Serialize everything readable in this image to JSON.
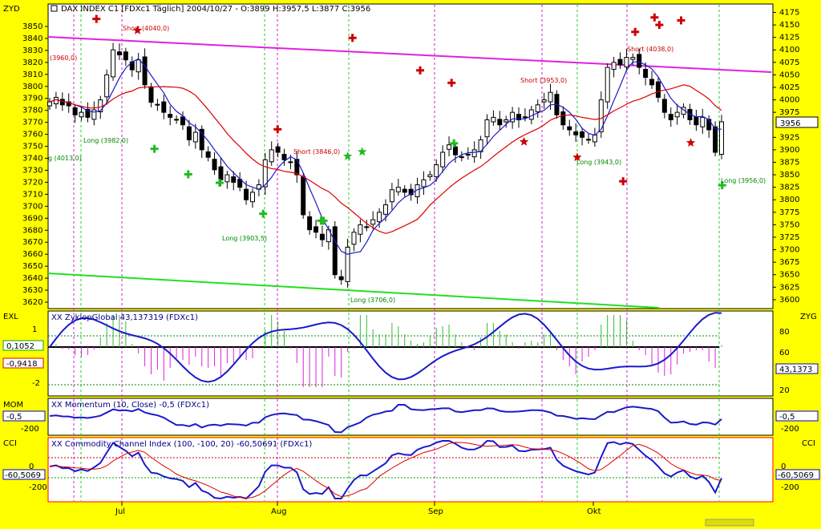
{
  "header": {
    "text": "DAX INDEX C1 [FDXc1  Täglich] 2004/10/27 - O:3899 H:3957,5 L:3877 C:3956"
  },
  "panels": {
    "price": {
      "left_label": "ZYD",
      "right_ticks": [
        "4175",
        "4150",
        "4125",
        "4100",
        "4075",
        "4050",
        "4025",
        "4000",
        "3975",
        "3956",
        "3925",
        "3900",
        "3875",
        "3850",
        "3825",
        "3800",
        "3775",
        "3750",
        "3725",
        "3700",
        "3675",
        "3650",
        "3625",
        "3600"
      ],
      "left_ticks": [
        "3850",
        "3840",
        "3830",
        "3820",
        "3810",
        "3800",
        "3790",
        "3780",
        "3770",
        "3760",
        "3750",
        "3740",
        "3730",
        "3720",
        "3710",
        "3700",
        "3690",
        "3680",
        "3670",
        "3660",
        "3650",
        "3640",
        "3630",
        "3620"
      ],
      "current_value": "3956"
    },
    "exl": {
      "left_label": "EXL",
      "right_label": "ZYG",
      "title": "XX ZyklopGlobal 43,137319 (FDXc1)",
      "left_ticks": [
        "1",
        "-2"
      ],
      "left_boxes": [
        "0,1052",
        "-0,9418"
      ],
      "right_ticks": [
        "80",
        "60",
        "40",
        "20"
      ],
      "right_box": "43,1373"
    },
    "mom": {
      "left_label": "MOM",
      "title": "XX Momentum (10, Close) -0,5 (FDXc1)",
      "left_box": "-0,5",
      "left_ticks": [
        "-200"
      ],
      "right_box": "-0,5",
      "right_ticks": [
        "-200"
      ]
    },
    "cci": {
      "left_label": "CCI",
      "right_label": "CCI",
      "title": "XX Commodity Channel Index (100, -100, 20) -60,50691 (FDXc1)",
      "left_ticks": [
        "0",
        "-200"
      ],
      "left_box": "-60,5069",
      "right_ticks": [
        "0",
        "-200"
      ],
      "right_box": "-60,5069"
    }
  },
  "x_axis": {
    "months": [
      "Jul",
      "Aug",
      "Sep",
      "Okt"
    ]
  },
  "annotations": {
    "shorts": [
      "Short (4040,0)",
      "(3960,0)",
      "Short (3846,0)",
      "Short (3953,0)",
      "Short (4038,0)"
    ],
    "longs": [
      "Long (3982,0)",
      "g (4013,0)",
      "Long (3903,5)",
      "Long (3706,0)",
      "Long (3943,0)",
      "Long (3956,0)"
    ]
  },
  "colors": {
    "background": "#ffff00",
    "plot": "#ffffff",
    "magenta_trend": "#e020e0",
    "green_trend": "#20e020",
    "short_color": "#cc0000",
    "long_color": "#008800",
    "blue_line": "#1a1acc",
    "red_line": "#dd0000"
  },
  "chart_data": {
    "type": "candlestick",
    "title": "DAX INDEX C1 [FDXc1  Täglich] 2004/10/27 - O:3899 H:3957,5 L:3877 C:3956",
    "ylim": [
      3587,
      4187
    ],
    "x_labels": [
      "Jul",
      "Aug",
      "Sep",
      "Okt"
    ],
    "closes": [
      3996,
      4005,
      3990,
      3988,
      3970,
      3975,
      3965,
      3980,
      4000,
      4050,
      4100,
      4090,
      4080,
      4060,
      4080,
      4030,
      3995,
      3990,
      3975,
      3965,
      3960,
      3950,
      3920,
      3935,
      3900,
      3885,
      3860,
      3840,
      3850,
      3835,
      3825,
      3800,
      3815,
      3830,
      3880,
      3900,
      3895,
      3880,
      3875,
      3850,
      3770,
      3740,
      3735,
      3720,
      3740,
      3650,
      3640,
      3705,
      3735,
      3750,
      3745,
      3760,
      3775,
      3790,
      3820,
      3825,
      3815,
      3810,
      3830,
      3840,
      3850,
      3870,
      3895,
      3910,
      3890,
      3885,
      3890,
      3900,
      3920,
      3960,
      3965,
      3950,
      3960,
      3975,
      3960,
      3965,
      3980,
      3990,
      4000,
      4015,
      3970,
      3950,
      3940,
      3930,
      3925,
      3920,
      3930,
      4000,
      4065,
      4075,
      4070,
      4085,
      4085,
      4065,
      4045,
      4030,
      4005,
      3975,
      3960,
      3975,
      3985,
      3960,
      3950,
      3965,
      3940,
      3895,
      3956
    ],
    "series": [
      {
        "name": "Short",
        "markers": [
          [
            20,
            4162
          ],
          [
            37,
            4139
          ],
          [
            95,
            3941
          ],
          [
            126,
            4124
          ],
          [
            154,
            4059
          ],
          [
            167,
            4034
          ],
          [
            197,
            3916
          ],
          [
            219,
            3885
          ],
          [
            238,
            3837
          ],
          [
            243,
            4136
          ],
          [
            251,
            4165
          ],
          [
            253,
            4150
          ],
          [
            262,
            4159
          ],
          [
            266,
            3914
          ]
        ]
      },
      {
        "name": "Long",
        "markers": [
          [
            44,
            3902
          ],
          [
            58,
            3851
          ],
          [
            71,
            3834
          ],
          [
            89,
            3772
          ],
          [
            113,
            3758
          ],
          [
            114,
            3758
          ],
          [
            124,
            3887
          ],
          [
            130,
            3896
          ],
          [
            168,
            3913
          ],
          [
            279,
            3829
          ]
        ]
      }
    ]
  }
}
